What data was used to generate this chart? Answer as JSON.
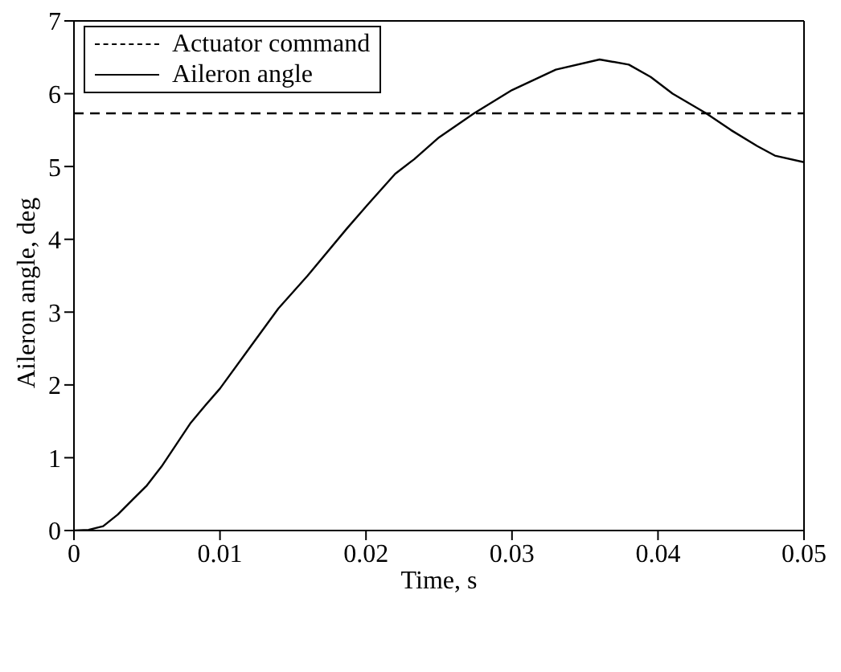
{
  "chart_data": {
    "type": "line",
    "xlabel": "Time, s",
    "ylabel": "Aileron angle, deg",
    "xlim": [
      0,
      0.05
    ],
    "xticks": [
      0,
      0.01,
      0.02,
      0.03,
      0.04,
      0.05
    ],
    "ylim": [
      0,
      7
    ],
    "yticks": [
      0,
      1,
      2,
      3,
      4,
      5,
      6,
      7
    ],
    "grid": false,
    "legend": "top left",
    "marker": "none",
    "series": [
      {
        "name": "Actuator command",
        "color": "#000000",
        "line_style": "dashed",
        "x": [
          0,
          0.05
        ],
        "values": [
          5.73,
          5.73
        ]
      },
      {
        "name": "Aileron angle",
        "color": "#000000",
        "line_style": "solid",
        "x": [
          0,
          0.001,
          0.002,
          0.003,
          0.004,
          0.005,
          0.006,
          0.007,
          0.008,
          0.009,
          0.01,
          0.012,
          0.014,
          0.016,
          0.0187,
          0.02,
          0.022,
          0.0233,
          0.025,
          0.0274,
          0.03,
          0.033,
          0.036,
          0.038,
          0.0395,
          0.041,
          0.0433,
          0.045,
          0.0468,
          0.048,
          0.05
        ],
        "values": [
          0,
          0.01,
          0.06,
          0.22,
          0.42,
          0.62,
          0.88,
          1.18,
          1.48,
          1.72,
          1.95,
          2.5,
          3.05,
          3.5,
          4.15,
          4.45,
          4.9,
          5.1,
          5.4,
          5.73,
          6.05,
          6.33,
          6.47,
          6.4,
          6.23,
          6.0,
          5.73,
          5.5,
          5.28,
          5.15,
          5.06
        ]
      }
    ]
  }
}
